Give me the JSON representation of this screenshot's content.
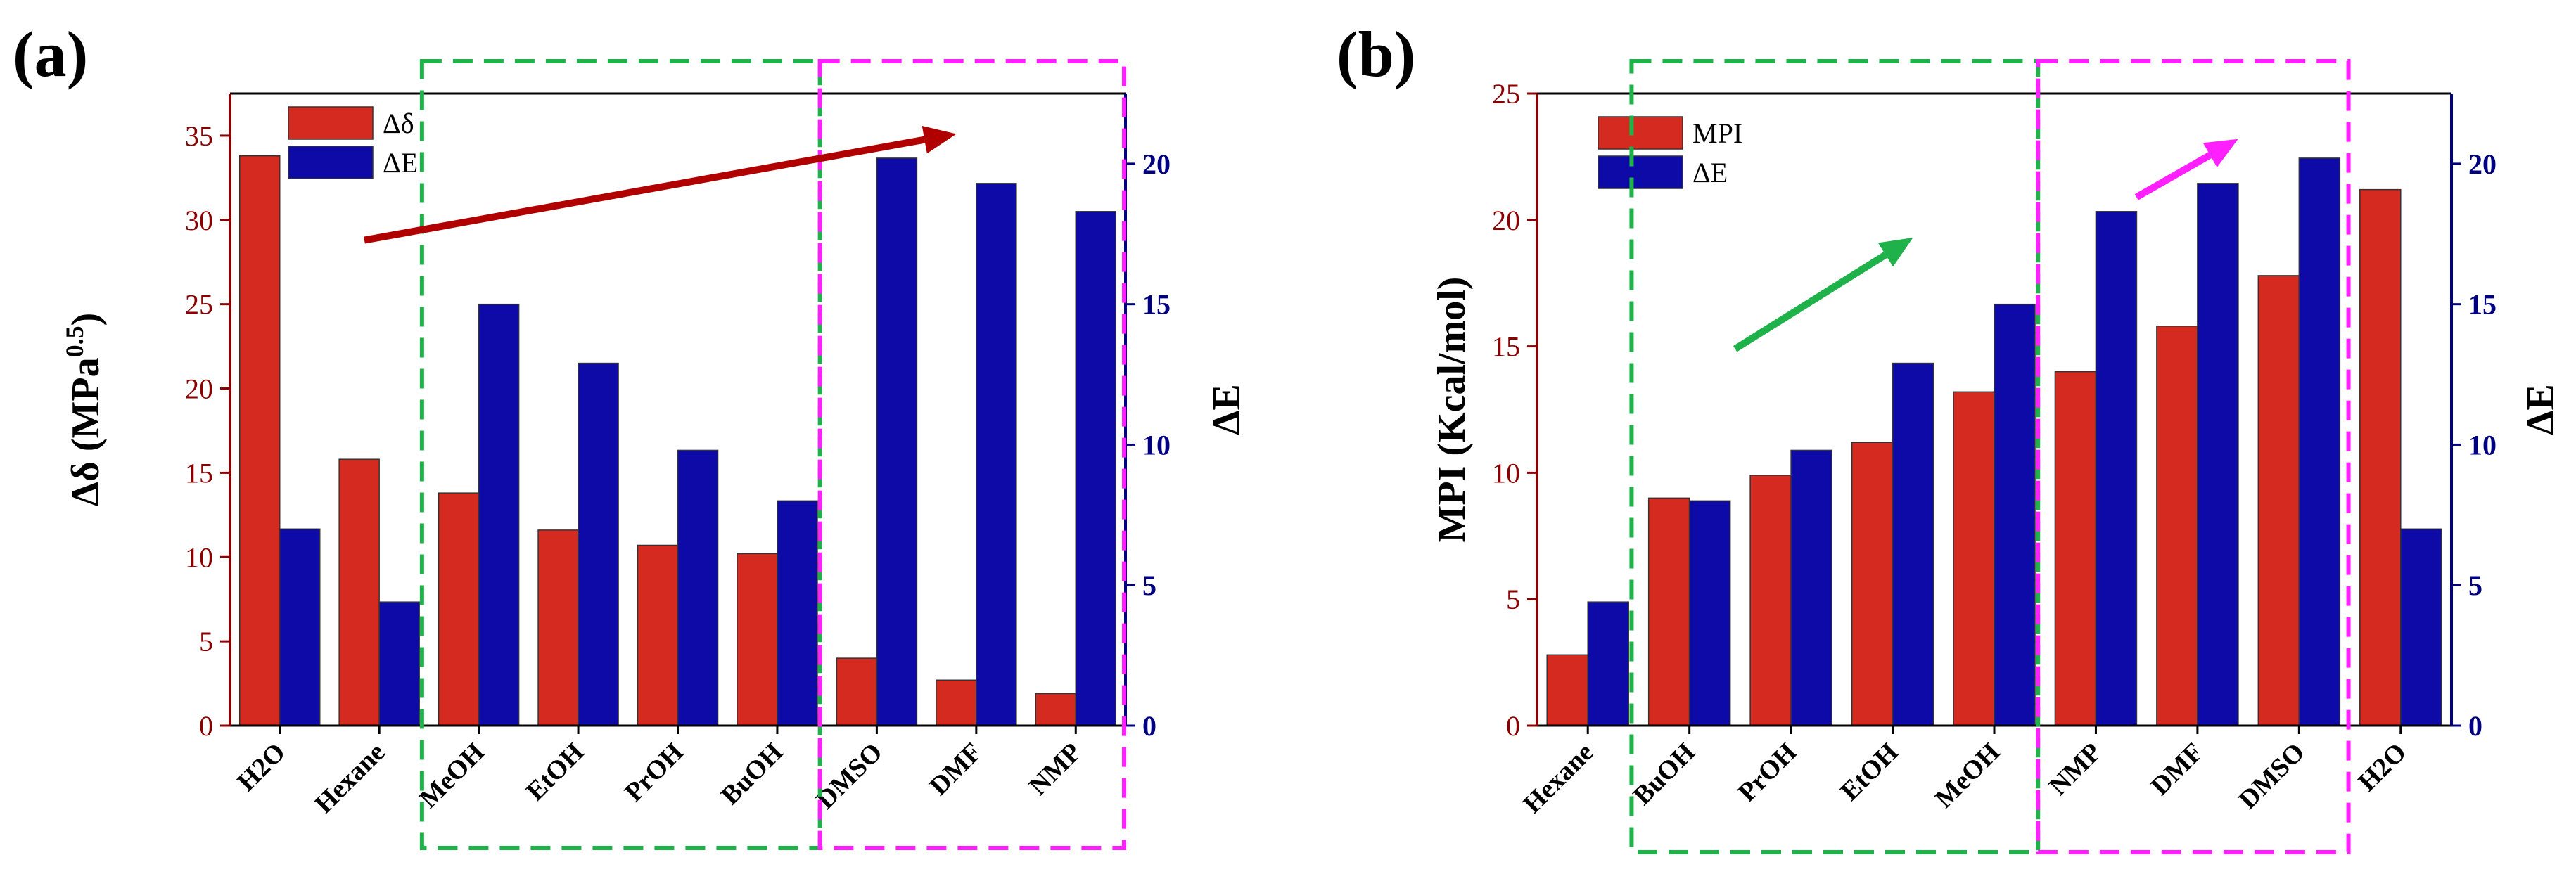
{
  "chart_data": [
    {
      "panel": "(a)",
      "type": "bar",
      "categories": [
        "H2O",
        "Hexane",
        "MeOH",
        "EtOH",
        "PrOH",
        "BuOH",
        "DMSO",
        "DMF",
        "NMP"
      ],
      "series": [
        {
          "name": "Δδ",
          "axis": "left",
          "color": "#d42a20",
          "values": [
            33.8,
            15.8,
            13.8,
            11.6,
            10.7,
            10.2,
            4.0,
            2.7,
            1.9
          ]
        },
        {
          "name": "ΔE",
          "axis": "right",
          "color": "#0d0aa8",
          "values": [
            7.0,
            4.4,
            15.0,
            12.9,
            9.8,
            8.0,
            20.2,
            19.3,
            18.3
          ]
        }
      ],
      "ylabel_left_main": "Δδ (MPa",
      "ylabel_left_sup": "0.5",
      "ylabel_left_end": ")",
      "ylabel_right": "ΔE",
      "ylim_left": [
        0,
        37.5
      ],
      "ylim_right": [
        0,
        22.5
      ],
      "yticks_left": [
        0,
        5,
        10,
        15,
        20,
        25,
        30,
        35
      ],
      "yticks_right": [
        0,
        5,
        10,
        15,
        20
      ],
      "left_axis_color": "#8b0000",
      "right_axis_color": "#000080",
      "legend_position": "top-left",
      "grid": false,
      "groups": [
        {
          "color": "#1fb24a",
          "start": 2,
          "end": 5
        },
        {
          "color": "#ff1fff",
          "start": 6,
          "end": 8
        }
      ],
      "arrows": [
        {
          "color": "#b00000",
          "from": [
            1.35,
            28.8
          ],
          "to": [
            7.3,
            35.1
          ]
        }
      ]
    },
    {
      "panel": "(b)",
      "type": "bar",
      "categories": [
        "Hexane",
        "BuOH",
        "PrOH",
        "EtOH",
        "MeOH",
        "NMP",
        "DMF",
        "DMSO",
        "H2O"
      ],
      "series": [
        {
          "name": "MPI",
          "axis": "left",
          "color": "#d42a20",
          "values": [
            2.8,
            9.0,
            9.9,
            11.2,
            13.2,
            14.0,
            15.8,
            17.8,
            21.2
          ]
        },
        {
          "name": "ΔE",
          "axis": "right",
          "color": "#0d0aa8",
          "values": [
            4.4,
            8.0,
            9.8,
            12.9,
            15.0,
            18.3,
            19.3,
            20.2,
            7.0
          ]
        }
      ],
      "ylabel_left_main": "MPI (Kcal/mol)",
      "ylabel_left_sup": "",
      "ylabel_left_end": "",
      "ylabel_right": "ΔE",
      "ylim_left": [
        0,
        25
      ],
      "ylim_right": [
        0,
        22.5
      ],
      "yticks_left": [
        0,
        5,
        10,
        15,
        20,
        25
      ],
      "yticks_right": [
        0,
        5,
        10,
        15,
        20
      ],
      "left_axis_color": "#8b0000",
      "right_axis_color": "#000080",
      "legend_position": "top-left",
      "grid": false,
      "groups": [
        {
          "color": "#1fb24a",
          "start": 1,
          "end": 4
        },
        {
          "color": "#ff1fff",
          "start": 5,
          "end": 7
        }
      ],
      "arrows": [
        {
          "color": "#1fb24a",
          "from": [
            1.95,
            14.9
          ],
          "to": [
            3.7,
            19.3
          ]
        },
        {
          "color": "#ff1fff",
          "from": [
            5.9,
            20.9
          ],
          "to": [
            6.9,
            23.2
          ]
        }
      ]
    }
  ]
}
